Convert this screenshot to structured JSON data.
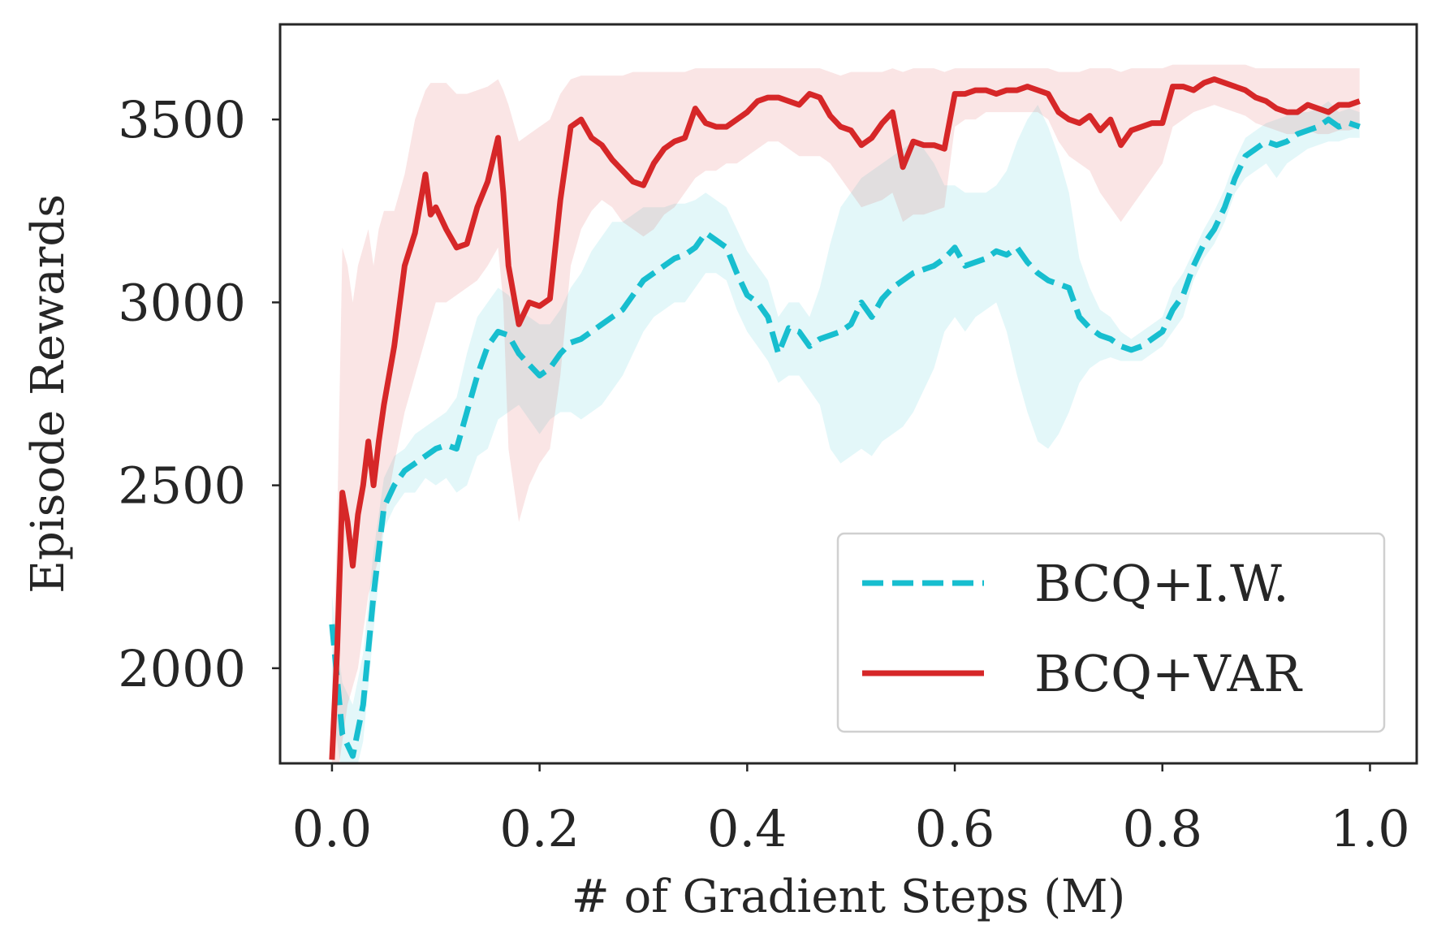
{
  "chart_data": {
    "type": "line",
    "title": "",
    "xlabel": "# of Gradient Steps (M)",
    "ylabel": "Episode Rewards",
    "xlim": [
      -0.05,
      1.045
    ],
    "ylim": [
      1740,
      3760
    ],
    "xticks": [
      0.0,
      0.2,
      0.4,
      0.6,
      0.8,
      1.0
    ],
    "xtick_labels": [
      "0.0",
      "0.2",
      "0.4",
      "0.6",
      "0.8",
      "1.0"
    ],
    "yticks": [
      2000,
      2500,
      3000,
      3500
    ],
    "ytick_labels": [
      "2000",
      "2500",
      "3000",
      "3500"
    ],
    "grid": false,
    "legend_position": "lower-right",
    "series": [
      {
        "name": "BCQ+I.W.",
        "color": "#17becf",
        "style": "dashed",
        "x": [
          0.0,
          0.01,
          0.02,
          0.03,
          0.04,
          0.05,
          0.06,
          0.07,
          0.08,
          0.09,
          0.1,
          0.11,
          0.12,
          0.13,
          0.14,
          0.15,
          0.16,
          0.17,
          0.18,
          0.19,
          0.2,
          0.21,
          0.22,
          0.23,
          0.24,
          0.25,
          0.26,
          0.27,
          0.28,
          0.29,
          0.3,
          0.31,
          0.32,
          0.33,
          0.34,
          0.35,
          0.36,
          0.37,
          0.38,
          0.39,
          0.4,
          0.41,
          0.42,
          0.43,
          0.44,
          0.45,
          0.46,
          0.47,
          0.48,
          0.49,
          0.5,
          0.51,
          0.52,
          0.53,
          0.54,
          0.55,
          0.56,
          0.57,
          0.58,
          0.59,
          0.6,
          0.61,
          0.62,
          0.63,
          0.64,
          0.65,
          0.66,
          0.67,
          0.68,
          0.69,
          0.7,
          0.71,
          0.72,
          0.73,
          0.74,
          0.75,
          0.76,
          0.77,
          0.78,
          0.79,
          0.8,
          0.81,
          0.82,
          0.83,
          0.84,
          0.85,
          0.86,
          0.87,
          0.88,
          0.89,
          0.9,
          0.91,
          0.92,
          0.93,
          0.94,
          0.95,
          0.96,
          0.97,
          0.98,
          0.99
        ],
        "values": [
          2120,
          1820,
          1760,
          1900,
          2200,
          2440,
          2500,
          2540,
          2560,
          2580,
          2600,
          2610,
          2600,
          2700,
          2800,
          2880,
          2920,
          2910,
          2860,
          2830,
          2800,
          2820,
          2860,
          2890,
          2900,
          2920,
          2940,
          2960,
          2980,
          3020,
          3060,
          3080,
          3100,
          3120,
          3130,
          3150,
          3190,
          3170,
          3150,
          3080,
          3020,
          3000,
          2960,
          2860,
          2930,
          2920,
          2880,
          2900,
          2910,
          2920,
          2940,
          3000,
          2960,
          3010,
          3040,
          3060,
          3080,
          3090,
          3100,
          3120,
          3150,
          3100,
          3110,
          3120,
          3140,
          3130,
          3150,
          3110,
          3080,
          3060,
          3050,
          3040,
          2960,
          2930,
          2910,
          2900,
          2880,
          2870,
          2880,
          2900,
          2920,
          2980,
          3020,
          3100,
          3160,
          3200,
          3260,
          3340,
          3400,
          3420,
          3440,
          3430,
          3440,
          3460,
          3470,
          3480,
          3500,
          3480,
          3490,
          3480
        ],
        "lower": [
          1900,
          1700,
          1680,
          1800,
          2100,
          2380,
          2440,
          2480,
          2480,
          2520,
          2500,
          2520,
          2480,
          2500,
          2580,
          2600,
          2680,
          2700,
          2720,
          2680,
          2640,
          2680,
          2700,
          2700,
          2680,
          2700,
          2720,
          2760,
          2800,
          2860,
          2920,
          2960,
          2980,
          3000,
          3000,
          3040,
          3080,
          3080,
          3060,
          2980,
          2920,
          2880,
          2840,
          2780,
          2800,
          2800,
          2760,
          2720,
          2600,
          2560,
          2580,
          2600,
          2580,
          2620,
          2640,
          2660,
          2700,
          2760,
          2820,
          2920,
          2960,
          2920,
          2960,
          2980,
          3000,
          2920,
          2800,
          2700,
          2620,
          2600,
          2640,
          2700,
          2780,
          2820,
          2840,
          2850,
          2840,
          2840,
          2840,
          2860,
          2880,
          2920,
          2960,
          3060,
          3120,
          3160,
          3220,
          3300,
          3340,
          3360,
          3380,
          3340,
          3380,
          3400,
          3420,
          3430,
          3440,
          3440,
          3450,
          3450
        ],
        "upper": [
          2200,
          1960,
          1900,
          2040,
          2320,
          2520,
          2580,
          2600,
          2640,
          2660,
          2680,
          2700,
          2740,
          2860,
          2960,
          3000,
          3040,
          3020,
          2980,
          2960,
          2940,
          2940,
          2980,
          3040,
          3080,
          3140,
          3180,
          3220,
          3220,
          3240,
          3260,
          3260,
          3260,
          3270,
          3270,
          3280,
          3300,
          3280,
          3260,
          3200,
          3140,
          3100,
          3060,
          2960,
          3000,
          3000,
          2960,
          3040,
          3160,
          3260,
          3300,
          3340,
          3360,
          3380,
          3400,
          3420,
          3440,
          3420,
          3380,
          3320,
          3320,
          3300,
          3300,
          3300,
          3320,
          3360,
          3440,
          3500,
          3540,
          3480,
          3400,
          3300,
          3120,
          3040,
          2980,
          2960,
          2920,
          2900,
          2920,
          2940,
          2960,
          3040,
          3080,
          3140,
          3200,
          3250,
          3310,
          3390,
          3450,
          3470,
          3490,
          3500,
          3510,
          3520,
          3520,
          3530,
          3550,
          3520,
          3530,
          3520
        ]
      },
      {
        "name": "BCQ+VAR",
        "color": "#d62728",
        "style": "solid",
        "x": [
          0.0,
          0.005,
          0.01,
          0.015,
          0.02,
          0.025,
          0.03,
          0.035,
          0.04,
          0.045,
          0.05,
          0.06,
          0.07,
          0.08,
          0.09,
          0.095,
          0.1,
          0.11,
          0.12,
          0.13,
          0.14,
          0.15,
          0.16,
          0.165,
          0.17,
          0.18,
          0.19,
          0.2,
          0.21,
          0.22,
          0.23,
          0.24,
          0.25,
          0.26,
          0.27,
          0.28,
          0.29,
          0.3,
          0.31,
          0.32,
          0.33,
          0.34,
          0.35,
          0.36,
          0.37,
          0.38,
          0.39,
          0.4,
          0.41,
          0.42,
          0.43,
          0.44,
          0.45,
          0.46,
          0.47,
          0.48,
          0.49,
          0.5,
          0.51,
          0.52,
          0.53,
          0.54,
          0.55,
          0.56,
          0.57,
          0.58,
          0.59,
          0.6,
          0.61,
          0.62,
          0.63,
          0.64,
          0.65,
          0.66,
          0.67,
          0.68,
          0.69,
          0.7,
          0.71,
          0.72,
          0.73,
          0.74,
          0.75,
          0.76,
          0.77,
          0.78,
          0.79,
          0.8,
          0.81,
          0.82,
          0.83,
          0.84,
          0.85,
          0.86,
          0.87,
          0.88,
          0.89,
          0.9,
          0.91,
          0.92,
          0.93,
          0.94,
          0.95,
          0.96,
          0.97,
          0.98,
          0.99
        ],
        "values": [
          1750,
          2050,
          2480,
          2400,
          2280,
          2420,
          2500,
          2620,
          2500,
          2620,
          2720,
          2880,
          3100,
          3190,
          3350,
          3240,
          3260,
          3200,
          3150,
          3160,
          3260,
          3330,
          3450,
          3300,
          3100,
          2940,
          3000,
          2990,
          3010,
          3280,
          3480,
          3500,
          3450,
          3430,
          3390,
          3360,
          3330,
          3320,
          3380,
          3420,
          3440,
          3450,
          3530,
          3490,
          3480,
          3480,
          3500,
          3520,
          3550,
          3560,
          3560,
          3550,
          3540,
          3570,
          3560,
          3510,
          3480,
          3470,
          3430,
          3450,
          3490,
          3520,
          3370,
          3440,
          3430,
          3430,
          3420,
          3570,
          3570,
          3580,
          3580,
          3570,
          3580,
          3580,
          3590,
          3580,
          3570,
          3520,
          3500,
          3490,
          3510,
          3470,
          3500,
          3430,
          3470,
          3480,
          3490,
          3490,
          3590,
          3590,
          3580,
          3600,
          3610,
          3600,
          3590,
          3580,
          3560,
          3550,
          3530,
          3520,
          3520,
          3540,
          3530,
          3520,
          3540,
          3540,
          3550
        ],
        "lower": [
          1600,
          1700,
          1800,
          1900,
          1950,
          2000,
          2100,
          2200,
          2250,
          2300,
          2400,
          2560,
          2700,
          2800,
          2900,
          2950,
          3000,
          3000,
          3020,
          3040,
          3060,
          3100,
          3150,
          3000,
          2600,
          2400,
          2500,
          2560,
          2600,
          2800,
          3100,
          3200,
          3250,
          3280,
          3260,
          3220,
          3200,
          3180,
          3200,
          3240,
          3260,
          3300,
          3340,
          3360,
          3360,
          3380,
          3380,
          3400,
          3420,
          3440,
          3440,
          3420,
          3400,
          3400,
          3400,
          3380,
          3340,
          3300,
          3260,
          3270,
          3280,
          3300,
          3220,
          3240,
          3240,
          3250,
          3260,
          3480,
          3500,
          3500,
          3520,
          3520,
          3520,
          3520,
          3520,
          3520,
          3500,
          3440,
          3400,
          3380,
          3360,
          3300,
          3260,
          3220,
          3260,
          3300,
          3340,
          3380,
          3480,
          3500,
          3520,
          3530,
          3540,
          3530,
          3520,
          3510,
          3490,
          3480,
          3470,
          3460,
          3460,
          3470,
          3460,
          3460,
          3470,
          3470,
          3480
        ],
        "upper": [
          1900,
          2400,
          3150,
          3100,
          3000,
          3100,
          3150,
          3200,
          3100,
          3200,
          3250,
          3250,
          3350,
          3500,
          3580,
          3600,
          3600,
          3600,
          3570,
          3570,
          3580,
          3590,
          3610,
          3580,
          3540,
          3440,
          3460,
          3480,
          3500,
          3570,
          3610,
          3620,
          3620,
          3620,
          3620,
          3620,
          3630,
          3630,
          3630,
          3630,
          3630,
          3630,
          3640,
          3640,
          3640,
          3640,
          3640,
          3640,
          3640,
          3640,
          3640,
          3640,
          3640,
          3640,
          3640,
          3630,
          3620,
          3630,
          3630,
          3630,
          3630,
          3640,
          3630,
          3640,
          3640,
          3640,
          3630,
          3640,
          3640,
          3640,
          3640,
          3640,
          3640,
          3640,
          3640,
          3640,
          3640,
          3630,
          3630,
          3630,
          3640,
          3640,
          3640,
          3630,
          3640,
          3640,
          3640,
          3640,
          3650,
          3650,
          3650,
          3650,
          3650,
          3650,
          3650,
          3650,
          3640,
          3640,
          3640,
          3640,
          3640,
          3640,
          3640,
          3640,
          3640,
          3640,
          3640
        ]
      }
    ]
  }
}
